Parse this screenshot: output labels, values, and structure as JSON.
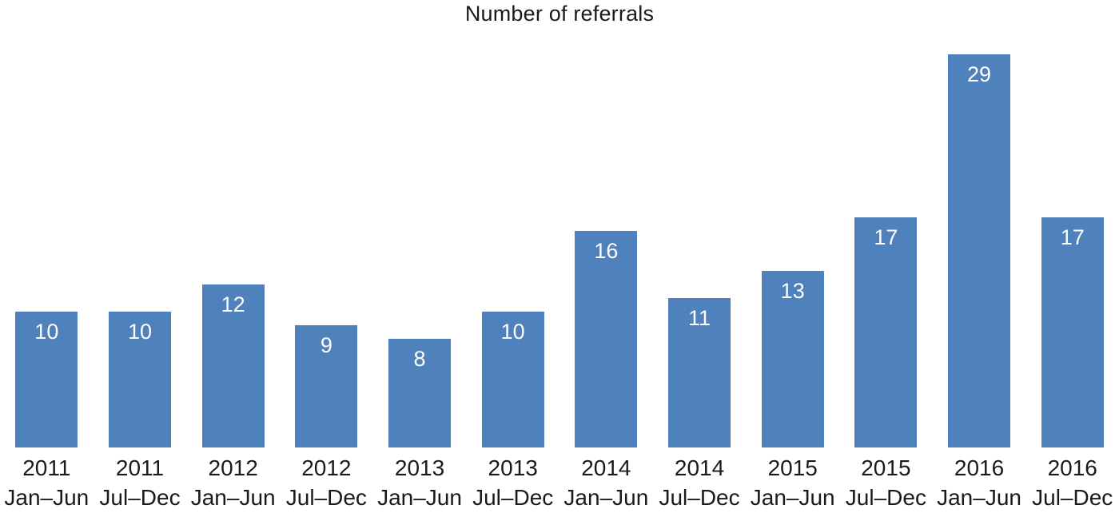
{
  "chart_data": {
    "type": "bar",
    "title": "Number of referrals",
    "categories": [
      {
        "year": "2011",
        "period": "Jan–Jun"
      },
      {
        "year": "2011",
        "period": "Jul–Dec"
      },
      {
        "year": "2012",
        "period": "Jan–Jun"
      },
      {
        "year": "2012",
        "period": "Jul–Dec"
      },
      {
        "year": "2013",
        "period": "Jan–Jun"
      },
      {
        "year": "2013",
        "period": "Jul–Dec"
      },
      {
        "year": "2014",
        "period": "Jan–Jun"
      },
      {
        "year": "2014",
        "period": "Jul–Dec"
      },
      {
        "year": "2015",
        "period": "Jan–Jun"
      },
      {
        "year": "2015",
        "period": "Jul–Dec"
      },
      {
        "year": "2016",
        "period": "Jan–Jun"
      },
      {
        "year": "2016",
        "period": "Jul–Dec"
      }
    ],
    "values": [
      10,
      10,
      12,
      9,
      8,
      10,
      16,
      11,
      13,
      17,
      29,
      17
    ],
    "xlabel": "",
    "ylabel": "",
    "ylim": [
      0,
      29
    ],
    "grid": false,
    "legend": "none",
    "data_labels": "inside-top",
    "bar_color": "#4f81bd",
    "value_label_color": "#ffffff",
    "axis_label_color": "#1a1a1a"
  }
}
